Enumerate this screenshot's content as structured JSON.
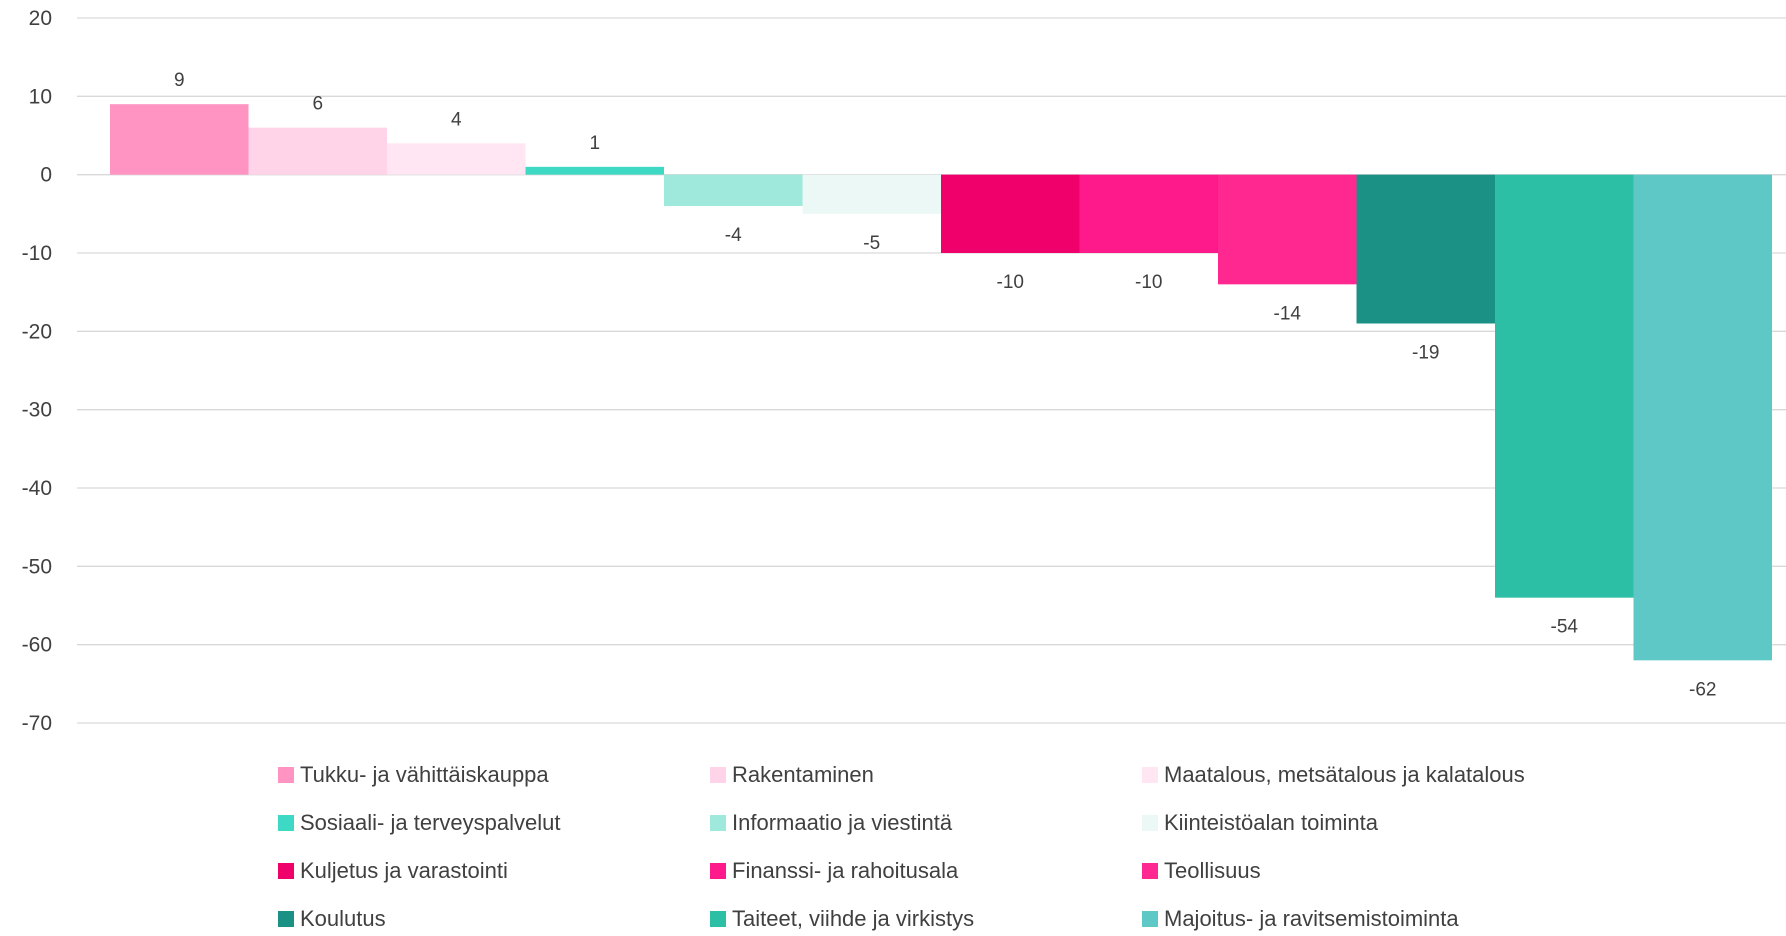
{
  "chart_data": {
    "type": "bar",
    "title": "",
    "xlabel": "",
    "ylabel": "",
    "ylim": [
      -70,
      20
    ],
    "yticks": [
      20,
      10,
      0,
      -10,
      -20,
      -30,
      -40,
      -50,
      -60,
      -70
    ],
    "grid": true,
    "legend_position": "bottom",
    "series": [
      {
        "name": "Tukku- ja vähittäiskauppa",
        "value": 9,
        "color": "#FF94C2"
      },
      {
        "name": "Rakentaminen",
        "value": 6,
        "color": "#FFD3E8"
      },
      {
        "name": "Maatalous, metsätalous ja kalatalous",
        "value": 4,
        "color": "#FFE6F2"
      },
      {
        "name": "Sosiaali- ja terveyspalvelut",
        "value": 1,
        "color": "#3ED9C4"
      },
      {
        "name": "Informaatio ja viestintä",
        "value": -4,
        "color": "#9FE8DC"
      },
      {
        "name": "Kiinteistöalan toiminta",
        "value": -5,
        "color": "#EBF8F6"
      },
      {
        "name": "Kuljetus ja varastointi",
        "value": -10,
        "color": "#F0006B"
      },
      {
        "name": "Finanssi- ja rahoitusala",
        "value": -10,
        "color": "#FF1A8C"
      },
      {
        "name": "Teollisuus",
        "value": -14,
        "color": "#FF2890"
      },
      {
        "name": "Koulutus",
        "value": -19,
        "color": "#1B9085"
      },
      {
        "name": "Taiteet, viihde ja virkistys",
        "value": -54,
        "color": "#2DBFA6"
      },
      {
        "name": "Majoitus- ja ravitsemistoiminta",
        "value": -62,
        "color": "#5EC8C6"
      }
    ]
  }
}
